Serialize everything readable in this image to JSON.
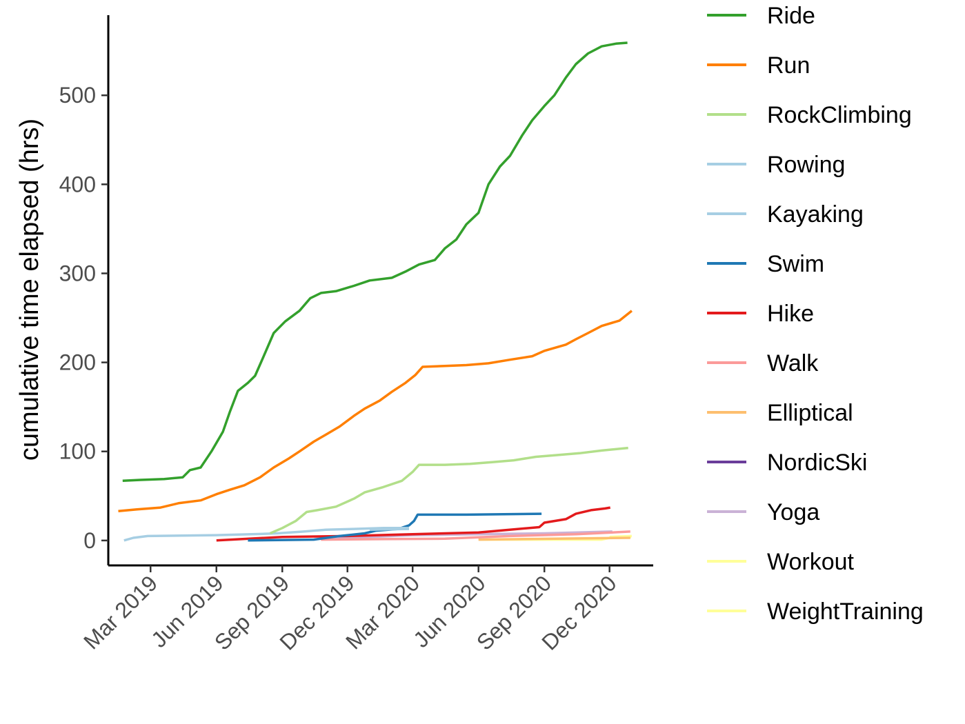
{
  "chart_data": {
    "type": "line",
    "title": "",
    "xlabel": "",
    "ylabel": "cumulative time elapsed (hrs)",
    "x_type": "date",
    "xlim": [
      "2019-01-01",
      "2021-01-31"
    ],
    "ylim": [
      -28,
      590
    ],
    "x_ticks": [
      {
        "date": "2019-03-01",
        "label": "Mar 2019"
      },
      {
        "date": "2019-06-01",
        "label": "Jun 2019"
      },
      {
        "date": "2019-09-01",
        "label": "Sep 2019"
      },
      {
        "date": "2019-12-01",
        "label": "Dec 2019"
      },
      {
        "date": "2020-03-01",
        "label": "Mar 2020"
      },
      {
        "date": "2020-06-01",
        "label": "Jun 2020"
      },
      {
        "date": "2020-09-01",
        "label": "Sep 2020"
      },
      {
        "date": "2020-12-01",
        "label": "Dec 2020"
      }
    ],
    "y_ticks": [
      0,
      100,
      200,
      300,
      400,
      500
    ],
    "grid": false,
    "legend_position": "right",
    "series": [
      {
        "name": "Ride",
        "color": "#33a02c",
        "points": [
          [
            "2019-01-21",
            67
          ],
          [
            "2019-02-15",
            68
          ],
          [
            "2019-03-20",
            69
          ],
          [
            "2019-04-15",
            71
          ],
          [
            "2019-04-25",
            79
          ],
          [
            "2019-05-10",
            82
          ],
          [
            "2019-05-25",
            100
          ],
          [
            "2019-06-10",
            122
          ],
          [
            "2019-06-20",
            145
          ],
          [
            "2019-07-01",
            168
          ],
          [
            "2019-07-15",
            177
          ],
          [
            "2019-07-25",
            185
          ],
          [
            "2019-08-05",
            205
          ],
          [
            "2019-08-20",
            233
          ],
          [
            "2019-09-05",
            246
          ],
          [
            "2019-09-25",
            258
          ],
          [
            "2019-10-10",
            272
          ],
          [
            "2019-10-25",
            278
          ],
          [
            "2019-11-15",
            280
          ],
          [
            "2019-12-10",
            286
          ],
          [
            "2020-01-01",
            292
          ],
          [
            "2020-02-01",
            295
          ],
          [
            "2020-02-20",
            302
          ],
          [
            "2020-03-10",
            310
          ],
          [
            "2020-04-01",
            315
          ],
          [
            "2020-04-15",
            328
          ],
          [
            "2020-05-01",
            338
          ],
          [
            "2020-05-15",
            355
          ],
          [
            "2020-06-01",
            368
          ],
          [
            "2020-06-15",
            400
          ],
          [
            "2020-07-01",
            420
          ],
          [
            "2020-07-15",
            432
          ],
          [
            "2020-08-01",
            455
          ],
          [
            "2020-08-15",
            472
          ],
          [
            "2020-09-01",
            488
          ],
          [
            "2020-09-15",
            500
          ],
          [
            "2020-10-01",
            520
          ],
          [
            "2020-10-15",
            535
          ],
          [
            "2020-11-01",
            547
          ],
          [
            "2020-11-20",
            555
          ],
          [
            "2020-12-10",
            558
          ],
          [
            "2020-12-26",
            559
          ]
        ]
      },
      {
        "name": "Run",
        "color": "#ff7f00",
        "points": [
          [
            "2019-01-15",
            33
          ],
          [
            "2019-02-10",
            35
          ],
          [
            "2019-03-15",
            37
          ],
          [
            "2019-04-10",
            42
          ],
          [
            "2019-05-10",
            45
          ],
          [
            "2019-06-01",
            52
          ],
          [
            "2019-06-20",
            57
          ],
          [
            "2019-07-10",
            62
          ],
          [
            "2019-08-01",
            71
          ],
          [
            "2019-08-20",
            82
          ],
          [
            "2019-09-10",
            92
          ],
          [
            "2019-09-25",
            100
          ],
          [
            "2019-10-15",
            111
          ],
          [
            "2019-11-01",
            119
          ],
          [
            "2019-11-20",
            128
          ],
          [
            "2019-12-10",
            140
          ],
          [
            "2019-12-25",
            148
          ],
          [
            "2020-01-15",
            157
          ],
          [
            "2020-02-01",
            167
          ],
          [
            "2020-02-20",
            177
          ],
          [
            "2020-03-05",
            186
          ],
          [
            "2020-03-15",
            195
          ],
          [
            "2020-04-15",
            196
          ],
          [
            "2020-05-15",
            197
          ],
          [
            "2020-06-15",
            199
          ],
          [
            "2020-07-15",
            203
          ],
          [
            "2020-08-15",
            207
          ],
          [
            "2020-09-01",
            213
          ],
          [
            "2020-10-01",
            220
          ],
          [
            "2020-10-15",
            226
          ],
          [
            "2020-11-01",
            233
          ],
          [
            "2020-11-20",
            241
          ],
          [
            "2020-12-15",
            247
          ],
          [
            "2021-01-01",
            258
          ]
        ]
      },
      {
        "name": "RockClimbing",
        "color": "#b2df8a",
        "points": [
          [
            "2019-08-15",
            8
          ],
          [
            "2019-09-01",
            14
          ],
          [
            "2019-09-20",
            22
          ],
          [
            "2019-10-05",
            32
          ],
          [
            "2019-10-20",
            34
          ],
          [
            "2019-11-15",
            38
          ],
          [
            "2019-12-10",
            47
          ],
          [
            "2019-12-25",
            54
          ],
          [
            "2020-01-20",
            60
          ],
          [
            "2020-02-15",
            67
          ],
          [
            "2020-03-01",
            77
          ],
          [
            "2020-03-10",
            85
          ],
          [
            "2020-04-15",
            85
          ],
          [
            "2020-05-20",
            86
          ],
          [
            "2020-06-20",
            88
          ],
          [
            "2020-07-20",
            90
          ],
          [
            "2020-08-20",
            94
          ],
          [
            "2020-09-20",
            96
          ],
          [
            "2020-10-20",
            98
          ],
          [
            "2020-11-20",
            101
          ],
          [
            "2020-12-27",
            104
          ]
        ]
      },
      {
        "name": "Rowing",
        "color": "#a6cee3",
        "points": [
          [
            "2019-01-23",
            0
          ],
          [
            "2019-02-05",
            3
          ],
          [
            "2019-02-25",
            5
          ],
          [
            "2019-04-15",
            5.5
          ],
          [
            "2019-06-01",
            6
          ],
          [
            "2019-07-20",
            7
          ],
          [
            "2019-08-25",
            8
          ],
          [
            "2019-10-01",
            10
          ],
          [
            "2019-11-01",
            12
          ],
          [
            "2019-12-10",
            13
          ],
          [
            "2020-01-20",
            14
          ],
          [
            "2020-02-25",
            14
          ]
        ]
      },
      {
        "name": "Kayaking",
        "color": "#a6cee3",
        "points": [
          [
            "2020-01-01",
            12
          ],
          [
            "2020-02-25",
            13
          ]
        ]
      },
      {
        "name": "Swim",
        "color": "#1f78b4",
        "points": [
          [
            "2019-07-15",
            0
          ],
          [
            "2019-10-15",
            1
          ],
          [
            "2019-11-20",
            5
          ],
          [
            "2019-12-25",
            8
          ],
          [
            "2020-01-10",
            11
          ],
          [
            "2020-02-10",
            13
          ],
          [
            "2020-02-25",
            17
          ],
          [
            "2020-03-03",
            22
          ],
          [
            "2020-03-08",
            29
          ],
          [
            "2020-05-15",
            29
          ],
          [
            "2020-08-28",
            30
          ]
        ]
      },
      {
        "name": "Hike",
        "color": "#e31a1c",
        "points": [
          [
            "2019-06-01",
            0
          ],
          [
            "2019-09-01",
            4
          ],
          [
            "2019-12-01",
            5
          ],
          [
            "2020-03-01",
            7
          ],
          [
            "2020-06-01",
            9
          ],
          [
            "2020-08-25",
            15
          ],
          [
            "2020-09-01",
            20
          ],
          [
            "2020-10-01",
            24
          ],
          [
            "2020-10-15",
            30
          ],
          [
            "2020-11-05",
            34
          ],
          [
            "2020-11-25",
            36
          ],
          [
            "2020-12-02",
            37
          ]
        ]
      },
      {
        "name": "Walk",
        "color": "#fb9a99",
        "points": [
          [
            "2019-10-25",
            1
          ],
          [
            "2020-01-15",
            1.5
          ],
          [
            "2020-04-15",
            2
          ],
          [
            "2020-07-15",
            5
          ],
          [
            "2020-10-15",
            7
          ],
          [
            "2020-12-30",
            10
          ]
        ]
      },
      {
        "name": "Elliptical",
        "color": "#fdbf6f",
        "points": [
          [
            "2020-06-01",
            1
          ],
          [
            "2020-12-30",
            3
          ]
        ]
      },
      {
        "name": "NordicSki",
        "color": "#6a3d9a",
        "points": []
      },
      {
        "name": "Yoga",
        "color": "#cab2d6",
        "points": [
          [
            "2019-11-01",
            2
          ],
          [
            "2020-01-01",
            4
          ],
          [
            "2020-03-01",
            6
          ],
          [
            "2020-06-01",
            7
          ],
          [
            "2020-09-01",
            8
          ],
          [
            "2020-12-05",
            10
          ]
        ]
      },
      {
        "name": "Workout",
        "color": "#ffff99",
        "points": [
          [
            "2020-06-03",
            1
          ],
          [
            "2020-11-20",
            1
          ],
          [
            "2020-12-01",
            3
          ],
          [
            "2020-12-31",
            4
          ]
        ]
      },
      {
        "name": "WeightTraining",
        "color": "#ffff99",
        "points": [
          [
            "2020-12-01",
            4
          ],
          [
            "2021-01-01",
            5
          ]
        ]
      }
    ]
  }
}
